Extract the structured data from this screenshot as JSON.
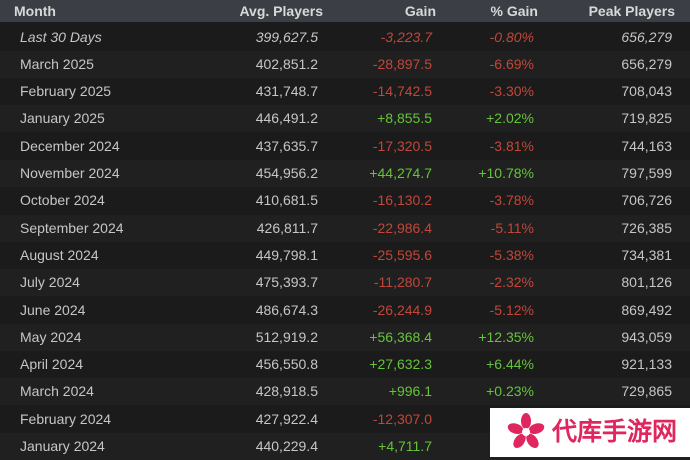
{
  "table": {
    "header": [
      "Month",
      "Avg. Players",
      "Gain",
      "% Gain",
      "Peak Players"
    ],
    "rows": [
      [
        "Last 30 Days",
        "399,627.5",
        "-3,223.7",
        "-0.80%",
        "656,279"
      ],
      [
        "March 2025",
        "402,851.2",
        "-28,897.5",
        "-6.69%",
        "656,279"
      ],
      [
        "February 2025",
        "431,748.7",
        "-14,742.5",
        "-3.30%",
        "708,043"
      ],
      [
        "January 2025",
        "446,491.2",
        "+8,855.5",
        "+2.02%",
        "719,825"
      ],
      [
        "December 2024",
        "437,635.7",
        "-17,320.5",
        "-3.81%",
        "744,163"
      ],
      [
        "November 2024",
        "454,956.2",
        "+44,274.7",
        "+10.78%",
        "797,599"
      ],
      [
        "October 2024",
        "410,681.5",
        "-16,130.2",
        "-3.78%",
        "706,726"
      ],
      [
        "September 2024",
        "426,811.7",
        "-22,986.4",
        "-5.11%",
        "726,385"
      ],
      [
        "August 2024",
        "449,798.1",
        "-25,595.6",
        "-5.38%",
        "734,381"
      ],
      [
        "July 2024",
        "475,393.7",
        "-11,280.7",
        "-2.32%",
        "801,126"
      ],
      [
        "June 2024",
        "486,674.3",
        "-26,244.9",
        "-5.12%",
        "869,492"
      ],
      [
        "May 2024",
        "512,919.2",
        "+56,368.4",
        "+12.35%",
        "943,059"
      ],
      [
        "April 2024",
        "456,550.8",
        "+27,632.3",
        "+6.44%",
        "921,133"
      ],
      [
        "March 2024",
        "428,918.5",
        "+996.1",
        "+0.23%",
        "729,865"
      ],
      [
        "February 2024",
        "427,922.4",
        "-12,307.0",
        null,
        null
      ],
      [
        "January 2024",
        "440,229.4",
        "+4,711.7",
        null,
        null
      ]
    ]
  },
  "watermark": "代库手游网"
}
